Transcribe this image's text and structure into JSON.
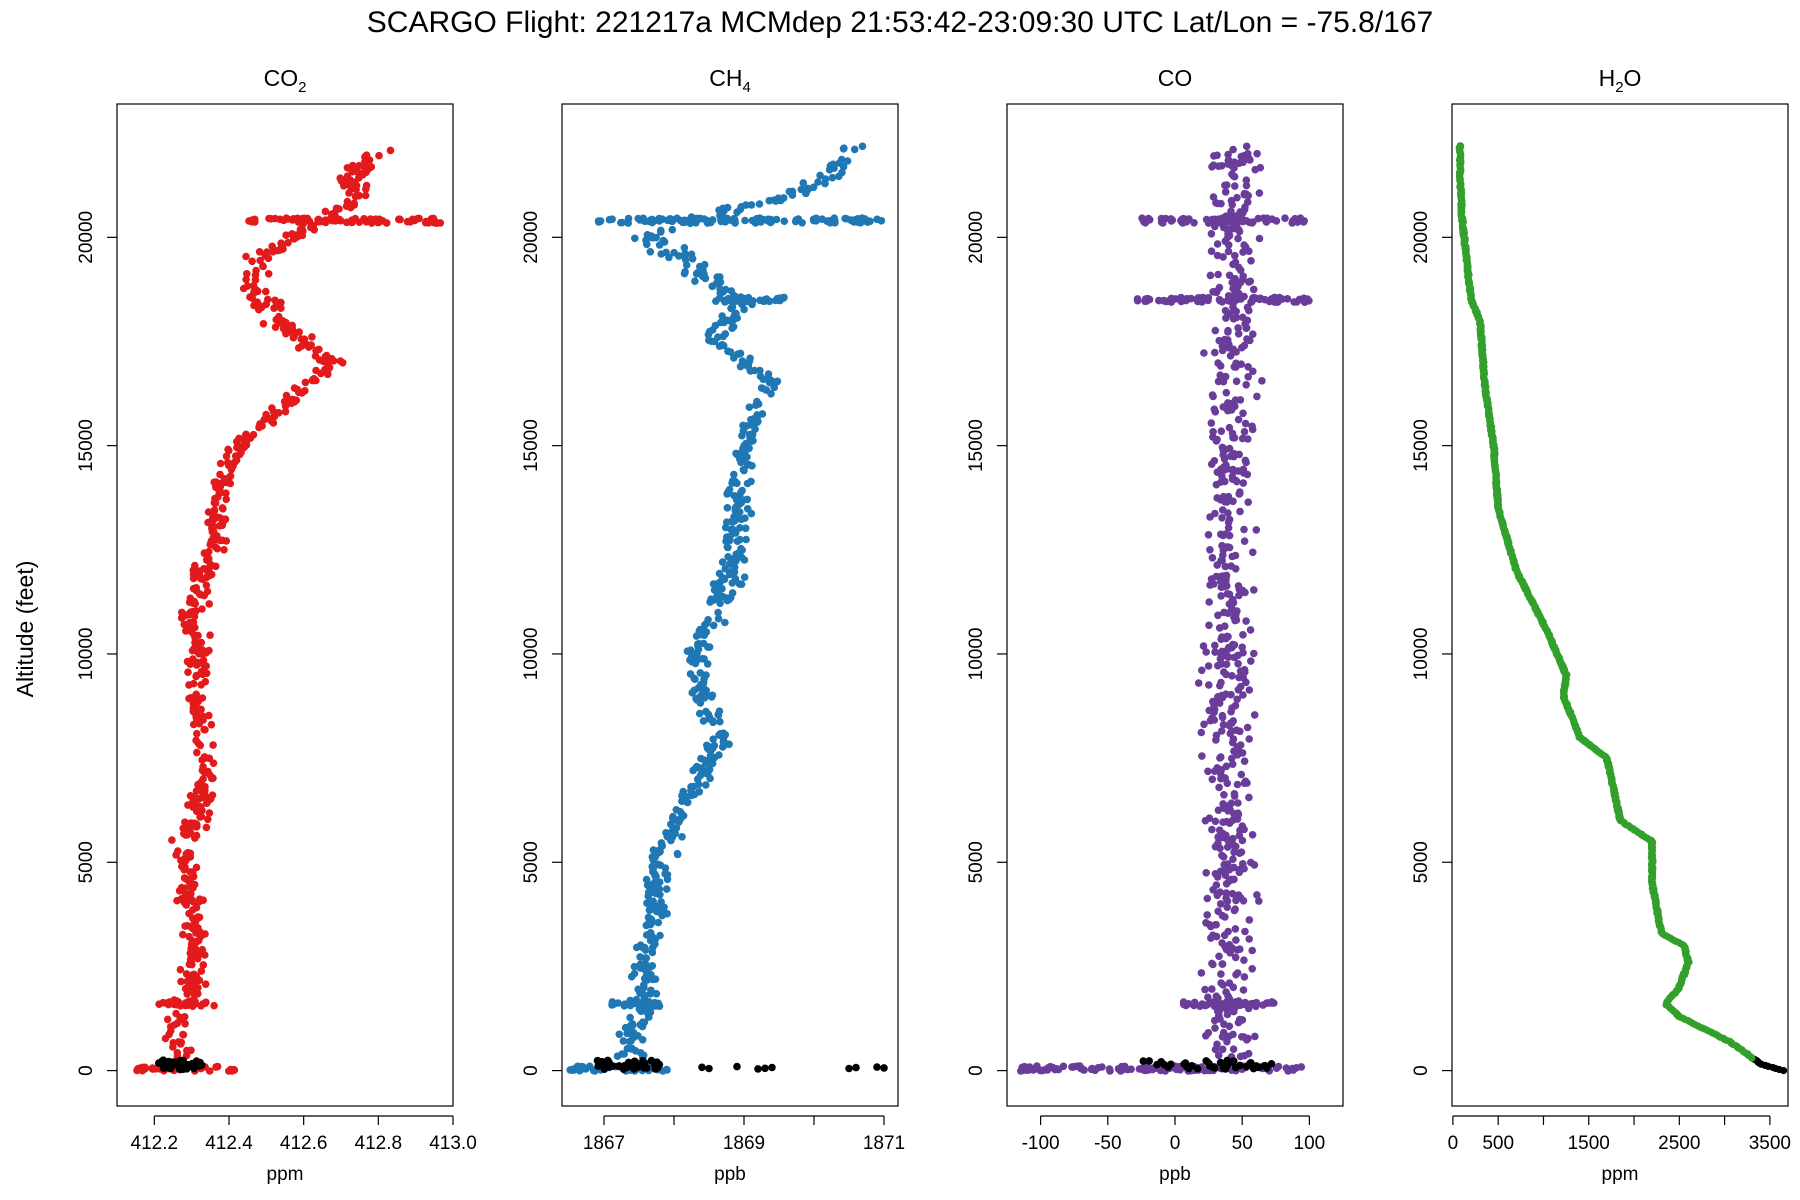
{
  "chart_data": {
    "title": "SCARGO Flight: 221217a  MCMdep  21:53:42-23:09:30 UTC  Lat/Lon = -75.8/167",
    "ylabel": "Altitude (feet)",
    "ylim": [
      -850,
      23200
    ],
    "yticks": [
      0,
      5000,
      10000,
      15000,
      20000
    ],
    "ground_color": "#000000",
    "panels": [
      {
        "type": "scatter",
        "name": "co2",
        "title": "CO",
        "title_sub": "2",
        "xlabel": "ppm",
        "xlim": [
          412.1,
          413.0
        ],
        "xticks": [
          412.2,
          412.4,
          412.6,
          412.8,
          413.0
        ],
        "xtick_labels": [
          "412.2",
          "412.4",
          "412.6",
          "412.8",
          "413.0"
        ],
        "color": "#e31a1c",
        "profile": [
          {
            "alt": 0,
            "x": 412.26,
            "spread": 0.09
          },
          {
            "alt": 400,
            "x": 412.28,
            "spread": 0.04
          },
          {
            "alt": 1000,
            "x": 412.25,
            "spread": 0.05
          },
          {
            "alt": 1500,
            "x": 412.27,
            "spread": 0.08
          },
          {
            "alt": 2000,
            "x": 412.3,
            "spread": 0.05
          },
          {
            "alt": 3000,
            "x": 412.31,
            "spread": 0.04
          },
          {
            "alt": 4000,
            "x": 412.3,
            "spread": 0.05
          },
          {
            "alt": 5000,
            "x": 412.27,
            "spread": 0.06
          },
          {
            "alt": 5800,
            "x": 412.3,
            "spread": 0.05
          },
          {
            "alt": 7000,
            "x": 412.34,
            "spread": 0.04
          },
          {
            "alt": 8000,
            "x": 412.33,
            "spread": 0.04
          },
          {
            "alt": 9000,
            "x": 412.31,
            "spread": 0.04
          },
          {
            "alt": 10000,
            "x": 412.32,
            "spread": 0.04
          },
          {
            "alt": 11000,
            "x": 412.3,
            "spread": 0.05
          },
          {
            "alt": 12500,
            "x": 412.36,
            "spread": 0.04
          },
          {
            "alt": 14000,
            "x": 412.37,
            "spread": 0.04
          },
          {
            "alt": 15000,
            "x": 412.43,
            "spread": 0.04
          },
          {
            "alt": 16000,
            "x": 412.55,
            "spread": 0.03
          },
          {
            "alt": 17000,
            "x": 412.68,
            "spread": 0.04
          },
          {
            "alt": 18000,
            "x": 412.52,
            "spread": 0.06
          },
          {
            "alt": 18800,
            "x": 412.47,
            "spread": 0.06
          },
          {
            "alt": 19500,
            "x": 412.48,
            "spread": 0.06
          },
          {
            "alt": 20000,
            "x": 412.58,
            "spread": 0.05
          },
          {
            "alt": 20400,
            "x": 412.65,
            "spread": 0.05
          },
          {
            "alt": 21000,
            "x": 412.75,
            "spread": 0.07
          },
          {
            "alt": 21500,
            "x": 412.72,
            "spread": 0.06
          },
          {
            "alt": 22200,
            "x": 412.82,
            "spread": 0.06
          }
        ],
        "ground": {
          "xmin": 412.2,
          "xmax": 412.33
        },
        "streaks": [
          {
            "alt": 20400,
            "xmin": 412.45,
            "xmax": 412.97
          },
          {
            "alt": 1600,
            "xmin": 412.2,
            "xmax": 412.36
          },
          {
            "alt": 50,
            "xmin": 412.15,
            "xmax": 412.42
          }
        ]
      },
      {
        "type": "scatter",
        "name": "ch4",
        "title": "CH",
        "title_sub": "4",
        "xlabel": "ppb",
        "xlim": [
          1866.4,
          1871.2
        ],
        "xticks": [
          1867,
          1868,
          1869,
          1870,
          1871
        ],
        "xtick_labels": [
          "1867",
          "",
          "1869",
          "",
          "1871"
        ],
        "color": "#1f78b4",
        "profile": [
          {
            "alt": 0,
            "x": 1867.4,
            "spread": 0.5
          },
          {
            "alt": 500,
            "x": 1867.4,
            "spread": 0.3
          },
          {
            "alt": 1500,
            "x": 1867.5,
            "spread": 0.4
          },
          {
            "alt": 2500,
            "x": 1867.6,
            "spread": 0.25
          },
          {
            "alt": 3500,
            "x": 1867.7,
            "spread": 0.25
          },
          {
            "alt": 5000,
            "x": 1867.8,
            "spread": 0.3
          },
          {
            "alt": 6000,
            "x": 1868.0,
            "spread": 0.25
          },
          {
            "alt": 7000,
            "x": 1868.4,
            "spread": 0.25
          },
          {
            "alt": 8000,
            "x": 1868.6,
            "spread": 0.3
          },
          {
            "alt": 9000,
            "x": 1868.4,
            "spread": 0.25
          },
          {
            "alt": 10000,
            "x": 1868.3,
            "spread": 0.25
          },
          {
            "alt": 11000,
            "x": 1868.6,
            "spread": 0.25
          },
          {
            "alt": 12500,
            "x": 1868.9,
            "spread": 0.3
          },
          {
            "alt": 14000,
            "x": 1868.9,
            "spread": 0.25
          },
          {
            "alt": 15500,
            "x": 1869.1,
            "spread": 0.2
          },
          {
            "alt": 16500,
            "x": 1869.4,
            "spread": 0.25
          },
          {
            "alt": 17500,
            "x": 1868.6,
            "spread": 0.3
          },
          {
            "alt": 18500,
            "x": 1869.0,
            "spread": 0.3
          },
          {
            "alt": 19500,
            "x": 1868.1,
            "spread": 0.4
          },
          {
            "alt": 20000,
            "x": 1867.6,
            "spread": 0.4
          },
          {
            "alt": 20400,
            "x": 1868.2,
            "spread": 0.5
          },
          {
            "alt": 21000,
            "x": 1869.7,
            "spread": 0.4
          },
          {
            "alt": 21500,
            "x": 1870.2,
            "spread": 0.4
          },
          {
            "alt": 22200,
            "x": 1870.6,
            "spread": 0.4
          }
        ],
        "ground": {
          "xmin": 1866.9,
          "xmax": 1867.8
        },
        "ground_extra": [
          1868.4,
          1868.5,
          1868.9,
          1869.2,
          1869.3,
          1869.4,
          1870.5,
          1870.6,
          1870.9,
          1871.0
        ],
        "streaks": [
          {
            "alt": 20400,
            "xmin": 1866.9,
            "xmax": 1871.0
          },
          {
            "alt": 18500,
            "xmin": 1868.5,
            "xmax": 1869.6
          },
          {
            "alt": 1600,
            "xmin": 1867.1,
            "xmax": 1867.8
          },
          {
            "alt": 50,
            "xmin": 1866.5,
            "xmax": 1868.0
          }
        ]
      },
      {
        "type": "scatter",
        "name": "co",
        "title": "CO",
        "title_sub": "",
        "xlabel": "ppb",
        "xlim": [
          -125,
          125
        ],
        "xticks": [
          -100,
          -50,
          0,
          50,
          100
        ],
        "xtick_labels": [
          "-100",
          "-50",
          "0",
          "50",
          "100"
        ],
        "color": "#6a3d9a",
        "profile": [
          {
            "alt": 0,
            "x": 40,
            "spread": 30
          },
          {
            "alt": 5000,
            "x": 40,
            "spread": 25
          },
          {
            "alt": 10000,
            "x": 40,
            "spread": 25
          },
          {
            "alt": 15000,
            "x": 40,
            "spread": 25
          },
          {
            "alt": 20000,
            "x": 45,
            "spread": 28
          },
          {
            "alt": 22200,
            "x": 45,
            "spread": 28
          }
        ],
        "ground": {
          "xmin": -25,
          "xmax": 75
        },
        "ground_extra": [],
        "streaks": [
          {
            "alt": 20400,
            "xmin": -25,
            "xmax": 100
          },
          {
            "alt": 18500,
            "xmin": -30,
            "xmax": 100
          },
          {
            "alt": 1600,
            "xmin": 5,
            "xmax": 75
          },
          {
            "alt": 50,
            "xmin": -115,
            "xmax": 95
          }
        ]
      },
      {
        "type": "line",
        "name": "h2o",
        "title": "H",
        "title_sub": "2",
        "title_tail": "O",
        "xlabel": "ppm",
        "xlim": [
          -10,
          3700
        ],
        "xticks": [
          0,
          500,
          1000,
          1500,
          2000,
          2500,
          3000,
          3500
        ],
        "xtick_labels": [
          "0",
          "500",
          "",
          "1500",
          "",
          "2500",
          "",
          "3500"
        ],
        "color": "#33a02c",
        "profile": [
          {
            "alt": 0,
            "x": 3650
          },
          {
            "alt": 150,
            "x": 3400
          },
          {
            "alt": 400,
            "x": 3250
          },
          {
            "alt": 700,
            "x": 3050
          },
          {
            "alt": 1300,
            "x": 2500
          },
          {
            "alt": 1600,
            "x": 2350
          },
          {
            "alt": 2000,
            "x": 2500
          },
          {
            "alt": 2600,
            "x": 2600
          },
          {
            "alt": 3000,
            "x": 2550
          },
          {
            "alt": 3300,
            "x": 2300
          },
          {
            "alt": 4500,
            "x": 2200
          },
          {
            "alt": 5500,
            "x": 2200
          },
          {
            "alt": 6000,
            "x": 1850
          },
          {
            "alt": 7500,
            "x": 1700
          },
          {
            "alt": 8000,
            "x": 1400
          },
          {
            "alt": 9000,
            "x": 1220
          },
          {
            "alt": 9500,
            "x": 1250
          },
          {
            "alt": 10500,
            "x": 1050
          },
          {
            "alt": 12000,
            "x": 700
          },
          {
            "alt": 13500,
            "x": 500
          },
          {
            "alt": 15000,
            "x": 450
          },
          {
            "alt": 16500,
            "x": 350
          },
          {
            "alt": 18000,
            "x": 300
          },
          {
            "alt": 18500,
            "x": 200
          },
          {
            "alt": 19500,
            "x": 150
          },
          {
            "alt": 20500,
            "x": 100
          },
          {
            "alt": 21500,
            "x": 80
          },
          {
            "alt": 22200,
            "x": 80
          }
        ],
        "ground_start_alt": 300
      }
    ]
  }
}
